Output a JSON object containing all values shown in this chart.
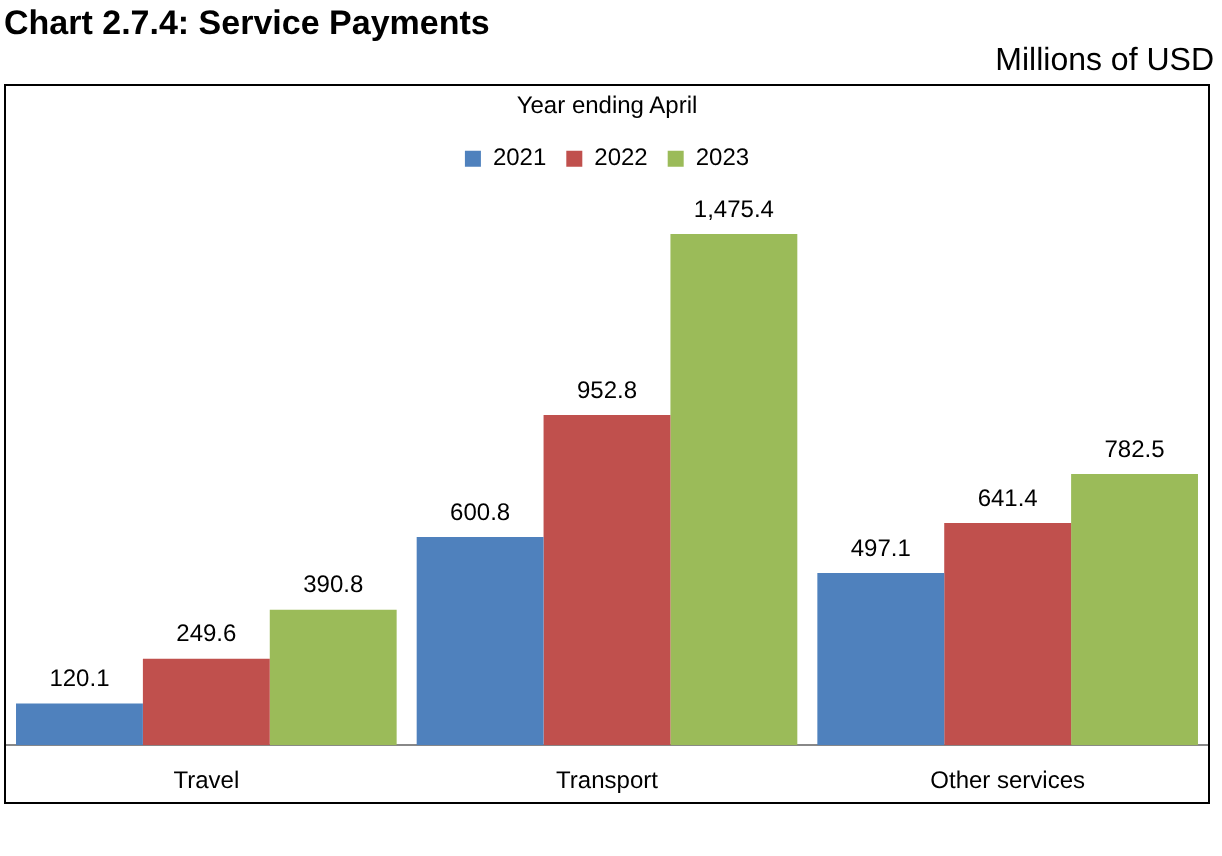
{
  "chart_data": {
    "type": "bar",
    "title": "Chart 2.7.4: Service Payments",
    "subtitle": "Millions of USD",
    "legend_title": "Year ending April",
    "categories": [
      "Travel",
      "Transport",
      "Other services"
    ],
    "series": [
      {
        "name": "2021",
        "color": "#4f81bd",
        "values": [
          120.1,
          600.8,
          497.1
        ],
        "value_labels": [
          "120.1",
          "600.8",
          "497.1"
        ]
      },
      {
        "name": "2022",
        "color": "#c0504d",
        "values": [
          249.6,
          952.8,
          641.4
        ],
        "value_labels": [
          "249.6",
          "952.8",
          "641.4"
        ]
      },
      {
        "name": "2023",
        "color": "#9bbb59",
        "values": [
          390.8,
          1475.4,
          782.5
        ],
        "value_labels": [
          "390.8",
          "1,475.4",
          "782.5"
        ]
      }
    ],
    "grid": false,
    "legend": "top"
  }
}
